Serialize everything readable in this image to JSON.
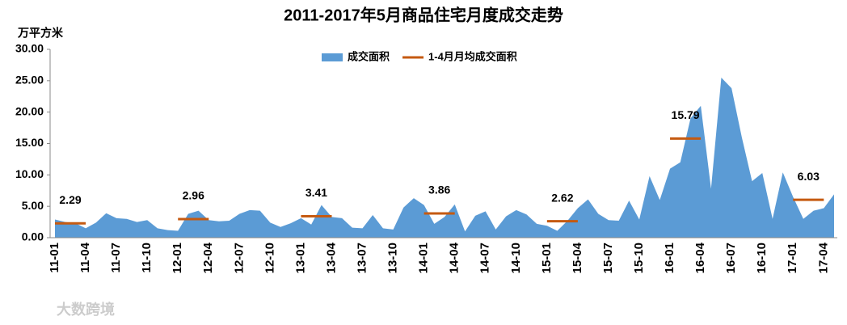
{
  "chart_data": {
    "type": "area",
    "title": "2011-2017年5月商品住宅月度成交走势",
    "y_label": "万平方米",
    "watermark": "大数跨境",
    "legend": "top",
    "categories": [
      "11-01",
      null,
      null,
      "11-04",
      null,
      null,
      "11-07",
      null,
      null,
      "11-10",
      null,
      null,
      "12-01",
      null,
      null,
      "12-04",
      null,
      null,
      "12-07",
      null,
      null,
      "12-10",
      null,
      null,
      "13-01",
      null,
      null,
      "13-04",
      null,
      null,
      "13-07",
      null,
      null,
      "13-10",
      null,
      null,
      "14-01",
      null,
      null,
      "14-04",
      null,
      null,
      "14-07",
      null,
      null,
      "14-10",
      null,
      null,
      "15-01",
      null,
      null,
      "15-04",
      null,
      null,
      "15-07",
      null,
      null,
      "15-10",
      null,
      null,
      "16-01",
      null,
      null,
      "16-04",
      null,
      null,
      "16-07",
      null,
      null,
      "16-10",
      null,
      null,
      "17-01",
      null,
      null,
      "17-04",
      null
    ],
    "series": [
      {
        "name": "成交面积",
        "type": "area",
        "color": "#5b9bd5",
        "values": [
          2.9,
          2.5,
          2.3,
          1.5,
          2.4,
          3.9,
          3.1,
          3.0,
          2.5,
          2.8,
          1.5,
          1.2,
          1.1,
          3.8,
          4.3,
          2.8,
          2.6,
          2.7,
          3.8,
          4.4,
          4.3,
          2.4,
          1.7,
          2.3,
          3.1,
          2.1,
          5.2,
          3.3,
          3.1,
          1.6,
          1.5,
          3.6,
          1.5,
          1.3,
          4.8,
          6.3,
          5.2,
          2.2,
          3.3,
          5.3,
          1.0,
          3.5,
          4.2,
          1.3,
          3.4,
          4.4,
          3.7,
          2.2,
          1.9,
          1.1,
          2.7,
          4.7,
          6.1,
          3.8,
          2.8,
          2.7,
          5.9,
          2.9,
          9.8,
          6.0,
          11.0,
          12.0,
          19.0,
          21.0,
          7.8,
          25.5,
          23.8,
          16.0,
          9.0,
          10.3,
          3.0,
          10.4,
          6.5,
          3.0,
          4.3,
          4.7,
          6.9
        ]
      },
      {
        "name": "1-4月月均成交面积",
        "type": "line",
        "color": "#c55a11",
        "values": [
          2.29,
          2.29,
          2.29,
          2.29,
          null,
          null,
          null,
          null,
          null,
          null,
          null,
          null,
          2.96,
          2.96,
          2.96,
          2.96,
          null,
          null,
          null,
          null,
          null,
          null,
          null,
          null,
          3.41,
          3.41,
          3.41,
          3.41,
          null,
          null,
          null,
          null,
          null,
          null,
          null,
          null,
          3.86,
          3.86,
          3.86,
          3.86,
          null,
          null,
          null,
          null,
          null,
          null,
          null,
          null,
          2.62,
          2.62,
          2.62,
          2.62,
          null,
          null,
          null,
          null,
          null,
          null,
          null,
          null,
          15.79,
          15.79,
          15.79,
          15.79,
          null,
          null,
          null,
          null,
          null,
          null,
          null,
          null,
          6.03,
          6.03,
          6.03,
          6.03,
          null
        ]
      }
    ],
    "ylim": [
      0,
      30
    ],
    "yticks": [
      {
        "value": 0,
        "label": "0.00"
      },
      {
        "value": 5,
        "label": "5.00"
      },
      {
        "value": 10,
        "label": "10.00"
      },
      {
        "value": 15,
        "label": "15.00"
      },
      {
        "value": 20,
        "label": "20.00"
      },
      {
        "value": 25,
        "label": "25.00"
      },
      {
        "value": 30,
        "label": "30.00"
      }
    ]
  }
}
